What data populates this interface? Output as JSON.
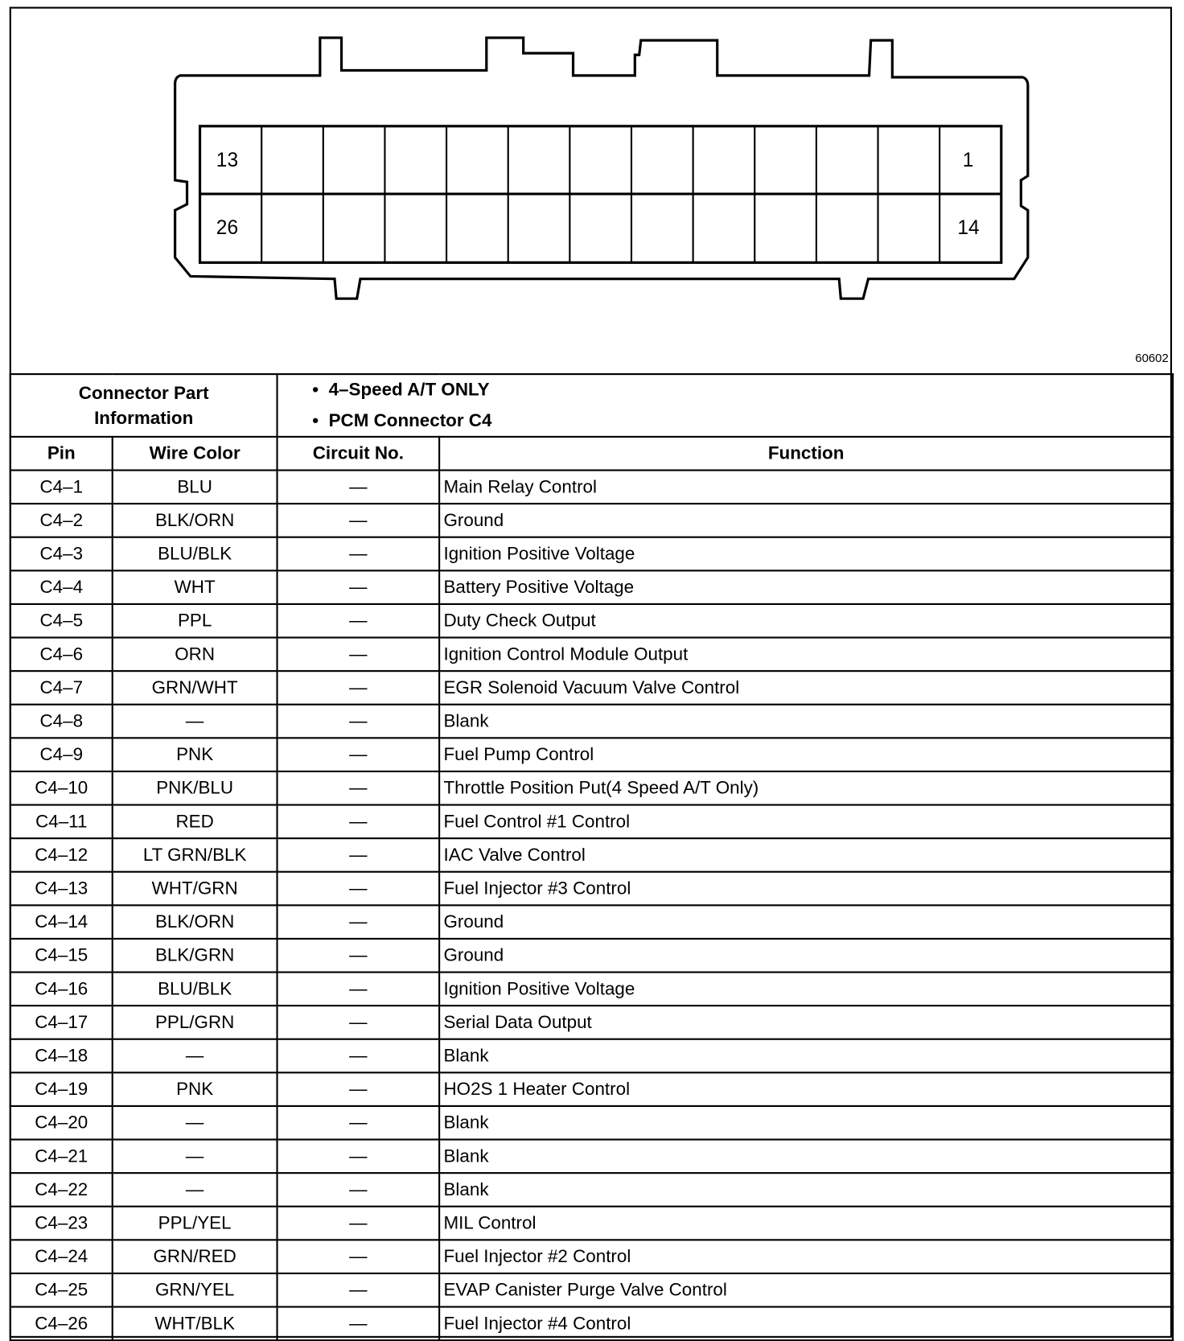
{
  "diagram": {
    "pin_labels": {
      "top_left": "13",
      "top_right": "1",
      "bottom_left": "26",
      "bottom_right": "14"
    },
    "figure_number": "60602"
  },
  "info": {
    "label": "Connector Part Information",
    "bullets": [
      "4–Speed A/T ONLY",
      "PCM Connector C4"
    ]
  },
  "headers": [
    "Pin",
    "Wire Color",
    "Circuit No.",
    "Function"
  ],
  "rows": [
    [
      "C4–1",
      "BLU",
      "—",
      "Main Relay Control"
    ],
    [
      "C4–2",
      "BLK/ORN",
      "—",
      "Ground"
    ],
    [
      "C4–3",
      "BLU/BLK",
      "—",
      "Ignition Positive Voltage"
    ],
    [
      "C4–4",
      "WHT",
      "—",
      "Battery Positive Voltage"
    ],
    [
      "C4–5",
      "PPL",
      "—",
      "Duty Check Output"
    ],
    [
      "C4–6",
      "ORN",
      "—",
      "Ignition Control Module Output"
    ],
    [
      "C4–7",
      "GRN/WHT",
      "—",
      "EGR Solenoid Vacuum Valve Control"
    ],
    [
      "C4–8",
      "—",
      "—",
      "Blank"
    ],
    [
      "C4–9",
      "PNK",
      "—",
      "Fuel Pump Control"
    ],
    [
      "C4–10",
      "PNK/BLU",
      "—",
      "Throttle Position Put(4 Speed A/T Only)"
    ],
    [
      "C4–11",
      "RED",
      "—",
      "Fuel Control #1 Control"
    ],
    [
      "C4–12",
      "LT GRN/BLK",
      "—",
      "IAC Valve Control"
    ],
    [
      "C4–13",
      "WHT/GRN",
      "—",
      "Fuel Injector #3 Control"
    ],
    [
      "C4–14",
      "BLK/ORN",
      "—",
      "Ground"
    ],
    [
      "C4–15",
      "BLK/GRN",
      "—",
      "Ground"
    ],
    [
      "C4–16",
      "BLU/BLK",
      "—",
      "Ignition Positive Voltage"
    ],
    [
      "C4–17",
      "PPL/GRN",
      "—",
      "Serial Data Output"
    ],
    [
      "C4–18",
      "—",
      "—",
      "Blank"
    ],
    [
      "C4–19",
      "PNK",
      "—",
      "HO2S 1 Heater Control"
    ],
    [
      "C4–20",
      "—",
      "—",
      "Blank"
    ],
    [
      "C4–21",
      "—",
      "—",
      "Blank"
    ],
    [
      "C4–22",
      "—",
      "—",
      "Blank"
    ],
    [
      "C4–23",
      "PPL/YEL",
      "—",
      "MIL Control"
    ],
    [
      "C4–24",
      "GRN/RED",
      "—",
      "Fuel Injector #2 Control"
    ],
    [
      "C4–25",
      "GRN/YEL",
      "—",
      "EVAP Canister Purge Valve Control"
    ],
    [
      "C4–26",
      "WHT/BLK",
      "—",
      "Fuel Injector #4 Control"
    ]
  ]
}
